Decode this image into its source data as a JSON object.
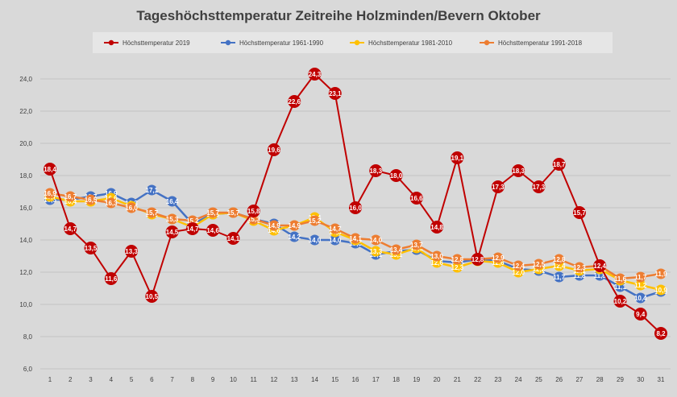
{
  "chart_data": {
    "type": "line",
    "title": "Tageshöchsttemperatur Zeitreihe Holzminden/Bevern Oktober",
    "xlabel": "",
    "ylabel": "",
    "ylim": [
      6.0,
      24.0
    ],
    "yticks": [
      "6,0",
      "8,0",
      "10,0",
      "12,0",
      "14,0",
      "16,0",
      "18,0",
      "20,0",
      "22,0",
      "24,0"
    ],
    "categories": [
      "1",
      "2",
      "3",
      "4",
      "5",
      "6",
      "7",
      "8",
      "9",
      "10",
      "11",
      "12",
      "13",
      "14",
      "15",
      "16",
      "17",
      "18",
      "19",
      "20",
      "21",
      "22",
      "23",
      "24",
      "25",
      "26",
      "27",
      "28",
      "29",
      "30",
      "31"
    ],
    "grid": true,
    "legend_position": "top",
    "series": [
      {
        "name": "Höchsttemperatur 1961-1990",
        "color": "#4472c4",
        "values": [
          16.5,
          16.5,
          16.7,
          16.9,
          16.3,
          17.1,
          16.4,
          15.0,
          15.6,
          15.7,
          15.3,
          15.0,
          14.2,
          14.0,
          14.0,
          13.8,
          13.1,
          13.3,
          13.4,
          12.7,
          12.6,
          12.8,
          12.7,
          12.2,
          12.1,
          11.7,
          11.8,
          11.8,
          11.1,
          10.4,
          10.8
        ],
        "labels": [
          "16,5",
          "16,5",
          "16,7",
          "16,9",
          "16,3",
          "17,1",
          "16,4",
          "15,0",
          "15,6",
          "15,7",
          "15,3",
          "15,0",
          "14,2",
          "14,0",
          "14,0",
          "13,8",
          "13,1",
          "13,3",
          "13,4",
          "12,7",
          "12,6",
          "12,8",
          "12,7",
          "12,2",
          "12,1",
          "11,7",
          "11,8",
          "11,8",
          "11,1",
          "10,4",
          "10,8"
        ]
      },
      {
        "name": "Höchsttemperatur 1981-2010",
        "color": "#ffc000",
        "values": [
          16.7,
          16.4,
          16.4,
          16.6,
          16.1,
          15.6,
          15.3,
          14.8,
          15.6,
          15.7,
          15.2,
          14.6,
          14.9,
          15.4,
          14.5,
          14.0,
          13.3,
          13.1,
          13.5,
          12.6,
          12.3,
          12.7,
          12.6,
          12.0,
          12.2,
          12.4,
          12.1,
          12.2,
          11.5,
          11.2,
          10.9
        ],
        "labels": [
          "16,7",
          "16,4",
          "16,4",
          "16,6",
          "16,1",
          "15,6",
          "15,3",
          "14,8",
          "15,6",
          "15,7",
          "15,2",
          "14,6",
          "14,9",
          "15,4",
          "14,5",
          "14,0",
          "13,3",
          "13,1",
          "13,5",
          "12,6",
          "12,3",
          "12,7",
          "12,6",
          "12,0",
          "12,2",
          "12,4",
          "12,1",
          "12,2",
          "11,5",
          "11,2",
          "10,9"
        ]
      },
      {
        "name": "Höchsttemperatur 1991-2018",
        "color": "#ed7d31",
        "values": [
          16.9,
          16.7,
          16.5,
          16.3,
          16.0,
          15.7,
          15.3,
          15.2,
          15.7,
          15.7,
          15.3,
          14.9,
          14.9,
          15.2,
          14.7,
          14.1,
          14.0,
          13.4,
          13.7,
          13.0,
          12.8,
          12.8,
          12.9,
          12.4,
          12.5,
          12.8,
          12.3,
          12.4,
          11.6,
          11.7,
          11.9
        ],
        "labels": [
          "16,9",
          "16,7",
          "16,5",
          "16,3",
          "16,0",
          "15,7",
          "15,3",
          "15,2",
          "15,7",
          "15,7",
          "15,3",
          "14,9",
          "14,9",
          "15,2",
          "14,7",
          "14,1",
          "14,0",
          "13,4",
          "13,7",
          "13,0",
          "12,8",
          "12,8",
          "12,9",
          "12,4",
          "12,5",
          "12,8",
          "12,3",
          "12,4",
          "11,6",
          "11,7",
          "11,9"
        ]
      },
      {
        "name": "Höchsttemperatur 2019",
        "color": "#c00000",
        "values": [
          18.4,
          14.7,
          13.5,
          11.6,
          13.3,
          10.5,
          14.5,
          14.7,
          14.6,
          14.1,
          15.8,
          19.6,
          22.6,
          24.3,
          23.1,
          16.0,
          18.3,
          18.0,
          16.6,
          14.8,
          19.1,
          12.8,
          17.3,
          18.3,
          17.3,
          18.7,
          15.7,
          12.4,
          10.2,
          9.4,
          8.2
        ],
        "labels": [
          "18,4",
          "14,7",
          "13,5",
          "11,6",
          "13,3",
          "10,5",
          "14,5",
          "14,7",
          "14,6",
          "14,1",
          "15,8",
          "19,6",
          "22,6",
          "24,3",
          "23,1",
          "16,0",
          "18,3",
          "18,0",
          "16,6",
          "14,8",
          "19,1",
          "12,8",
          "17,3",
          "18,3",
          "17,3",
          "18,7",
          "15,7",
          "12,4",
          "10,2",
          "9,4",
          "8,2"
        ]
      }
    ],
    "legend_order": [
      3,
      0,
      1,
      2
    ]
  }
}
